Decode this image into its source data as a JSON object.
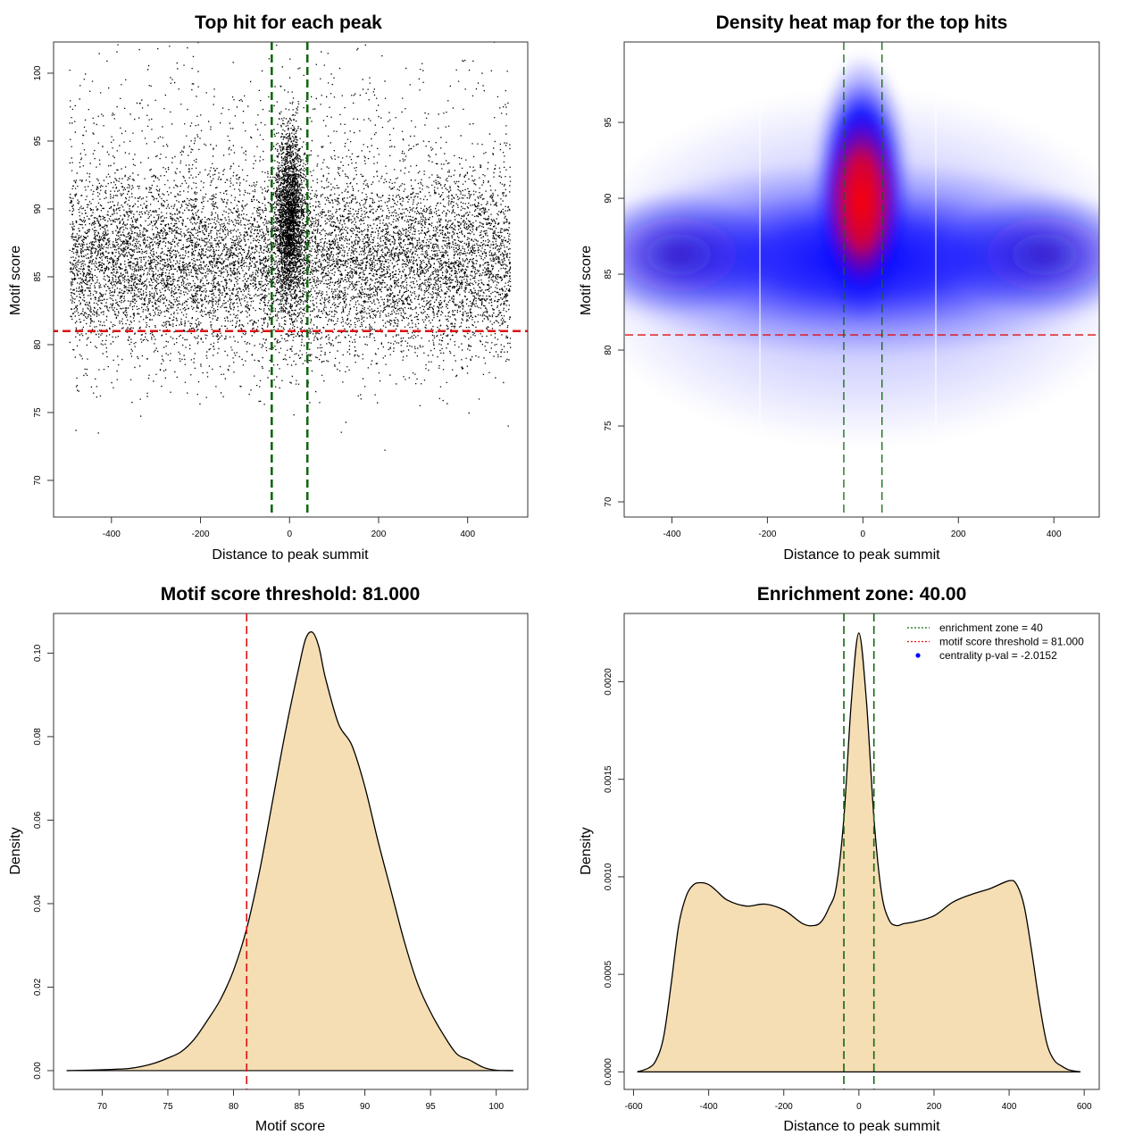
{
  "chart_data": [
    {
      "type": "scatter",
      "title": "Top hit for each peak",
      "xlabel": "Distance to peak summit",
      "ylabel": "Motif score",
      "xlim": [
        -530,
        535
      ],
      "ylim": [
        67.3,
        102.3
      ],
      "xticks": [
        -400,
        -200,
        0,
        200,
        400
      ],
      "yticks": [
        70,
        75,
        80,
        85,
        90,
        95,
        100
      ],
      "hlines": [
        {
          "y": 81.0,
          "color": "#dd1111",
          "style": "dashed"
        }
      ],
      "vlines": [
        {
          "x": -40,
          "color": "#116611",
          "style": "dashed"
        },
        {
          "x": 40,
          "color": "#116611",
          "style": "dashed"
        }
      ],
      "point_color": "#000000",
      "notes": "Approx. 14000 peaks; background uniform in [-500,500] with score mode ~86; central cluster |x|<40 with score mode ~90"
    },
    {
      "type": "heatmap",
      "title": "Density heat map for the top hits",
      "xlabel": "Distance to peak summit",
      "ylabel": "Motif score",
      "xlim": [
        -500,
        495
      ],
      "ylim": [
        69.0,
        100.3
      ],
      "xticks": [
        -400,
        -200,
        0,
        200,
        400
      ],
      "yticks": [
        70,
        75,
        80,
        85,
        90,
        95
      ],
      "hlines": [
        {
          "y": 81.0,
          "color": "#dd1111",
          "style": "dashed"
        }
      ],
      "vlines": [
        {
          "x": -40,
          "color": "#116611",
          "style": "dashed"
        },
        {
          "x": 40,
          "color": "#116611",
          "style": "dashed"
        }
      ],
      "colors": [
        "#ffffff",
        "#0000ff",
        "#ff0000"
      ],
      "hotspot": {
        "x": 5,
        "y": 90
      }
    },
    {
      "type": "area",
      "title": "Motif score threshold: 81.000",
      "xlabel": "Motif score",
      "ylabel": "Density",
      "xlim": [
        66.3,
        102.4
      ],
      "ylim": [
        -0.0045,
        0.1095
      ],
      "xticks": [
        70,
        75,
        80,
        85,
        90,
        95,
        100
      ],
      "yticks": [
        0.0,
        0.02,
        0.04,
        0.06,
        0.08,
        0.1
      ],
      "ytick_labels": [
        "0.00",
        "0.02",
        "0.04",
        "0.06",
        "0.08",
        "0.10"
      ],
      "fill": "#f5deb3",
      "vlines": [
        {
          "x": 81.0,
          "color": "#dd1111",
          "style": "dashed"
        }
      ],
      "x": [
        67.3,
        70,
        72,
        73,
        74,
        75,
        76,
        77,
        78,
        79,
        80,
        81,
        82,
        83,
        84,
        85,
        85.5,
        86,
        86.5,
        87,
        88,
        89,
        90,
        91,
        92,
        93,
        94,
        95,
        96,
        97,
        98,
        99,
        100,
        101.3
      ],
      "y": [
        0.0,
        0.0002,
        0.0005,
        0.001,
        0.0018,
        0.003,
        0.0045,
        0.0075,
        0.012,
        0.017,
        0.024,
        0.034,
        0.048,
        0.065,
        0.082,
        0.097,
        0.1035,
        0.105,
        0.1015,
        0.094,
        0.083,
        0.078,
        0.068,
        0.055,
        0.043,
        0.031,
        0.021,
        0.014,
        0.0085,
        0.004,
        0.0025,
        0.0008,
        0.0001,
        0.0
      ]
    },
    {
      "type": "area",
      "title": "Enrichment zone: 40.00",
      "xlabel": "Distance to peak summit",
      "ylabel": "Density",
      "xlim": [
        -625,
        640
      ],
      "ylim": [
        -9e-05,
        0.00235
      ],
      "xticks": [
        -600,
        -400,
        -200,
        0,
        200,
        400,
        600
      ],
      "yticks": [
        0.0,
        0.0005,
        0.001,
        0.0015,
        0.002
      ],
      "ytick_labels": [
        "0.0000",
        "0.0005",
        "0.0010",
        "0.0015",
        "0.0020"
      ],
      "fill": "#f5deb3",
      "vlines": [
        {
          "x": -40,
          "color": "#116611",
          "style": "dashed"
        },
        {
          "x": 40,
          "color": "#116611",
          "style": "dashed"
        }
      ],
      "x": [
        -590,
        -560,
        -540,
        -520,
        -500,
        -480,
        -460,
        -440,
        -420,
        -400,
        -380,
        -350,
        -300,
        -250,
        -200,
        -150,
        -120,
        -100,
        -80,
        -60,
        -40,
        -20,
        0,
        20,
        40,
        60,
        80,
        100,
        120,
        150,
        200,
        250,
        300,
        350,
        400,
        420,
        440,
        460,
        480,
        500,
        520,
        540,
        560,
        590
      ],
      "y": [
        0.0,
        2e-05,
        6e-05,
        0.00018,
        0.00045,
        0.00075,
        0.0009,
        0.00096,
        0.00097,
        0.00096,
        0.00093,
        0.00088,
        0.00085,
        0.00086,
        0.00083,
        0.00076,
        0.00075,
        0.00077,
        0.00084,
        0.00095,
        0.0013,
        0.0019,
        0.00225,
        0.0019,
        0.0013,
        0.00092,
        0.00078,
        0.00075,
        0.00076,
        0.00077,
        0.0008,
        0.00087,
        0.00091,
        0.00094,
        0.00098,
        0.00096,
        0.00085,
        0.00062,
        0.00036,
        0.00015,
        6e-05,
        3e-05,
        1e-05,
        0.0
      ],
      "legend": [
        {
          "label": "enrichment zone = 40",
          "color": "#116611",
          "style": "dotted"
        },
        {
          "label": "motif score threshold = 81.000",
          "color": "#dd1111",
          "style": "dotted"
        },
        {
          "label": "centrality p-val = -2.0152",
          "color": "#0000ff",
          "style": "point"
        }
      ]
    }
  ]
}
